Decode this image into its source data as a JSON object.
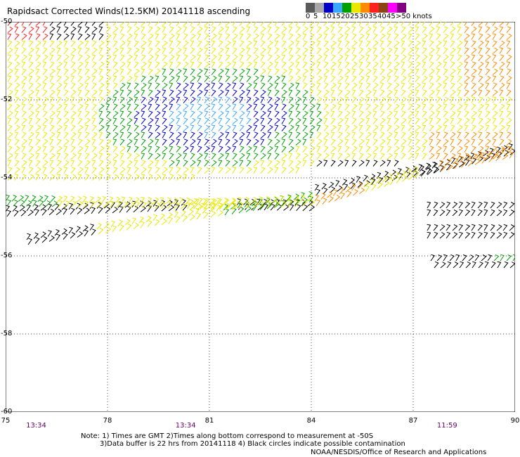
{
  "title": "Rapidsact Corrected Winds(12.5KM) 20141118 ascending",
  "legend": {
    "labels": [
      "0",
      "5",
      "10",
      "15",
      "20",
      "25",
      "30",
      "35",
      "40",
      "45",
      ">50 knots"
    ],
    "colors": [
      "#5a5a5a",
      "#a8a8a8",
      "#0000c8",
      "#3aa8ff",
      "#00a000",
      "#e8e800",
      "#ff8c00",
      "#ff2020",
      "#8b4513",
      "#ff00ff",
      "#800080"
    ]
  },
  "axes": {
    "x_ticks": [
      "75",
      "78",
      "81",
      "84",
      "87",
      "90"
    ],
    "y_ticks": [
      "-50",
      "-52",
      "-54",
      "-56",
      "-58",
      "-60"
    ],
    "times": [
      {
        "label": "13:34",
        "lon": 75.9
      },
      {
        "label": "13:34",
        "lon": 80.3
      },
      {
        "label": "11:59",
        "lon": 88.0
      }
    ]
  },
  "wind_colors": {
    "black": "#000000",
    "blue": "#0000c8",
    "light_blue": "#3aa8ff",
    "green": "#00a000",
    "yellow": "#e8e800",
    "orange": "#ff8c00",
    "red": "#ff2020"
  },
  "notes": {
    "line1": "Note: 1) Times are GMT 2)Times along bottom correspond to measurement at -50S",
    "line2": "3)Data buffer is 22 hrs from 20141118 4) Black circles indicate possible contamination"
  },
  "credit": "NOAA/NESDIS/Office of Research and Applications"
}
